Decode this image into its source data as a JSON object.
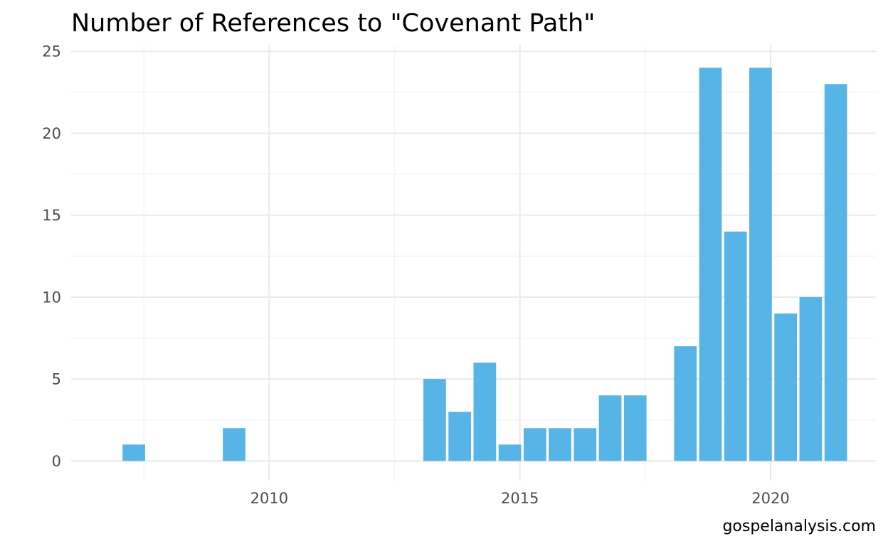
{
  "chart_data": {
    "type": "bar",
    "title": "Number of References to \"Covenant Path\"",
    "xlabel": "",
    "ylabel": "",
    "caption": "gospelanalysis.com",
    "x": [
      2007.3,
      2009.3,
      2013.3,
      2013.8,
      2014.3,
      2014.8,
      2015.3,
      2015.8,
      2016.3,
      2016.8,
      2017.3,
      2018.3,
      2018.8,
      2019.3,
      2019.8,
      2020.3,
      2020.8,
      2021.3
    ],
    "values": [
      1,
      2,
      5,
      3,
      6,
      1,
      2,
      2,
      2,
      4,
      4,
      7,
      24,
      14,
      24,
      9,
      10,
      23
    ],
    "xlim": [
      2006.05,
      2022.1
    ],
    "ylim": [
      -1.2,
      25.4
    ],
    "x_ticks": [
      2010,
      2015,
      2020
    ],
    "x_tick_labels": [
      "2010",
      "2015",
      "2020"
    ],
    "y_ticks": [
      0,
      5,
      10,
      15,
      20,
      25
    ],
    "y_tick_labels": [
      "0",
      "5",
      "10",
      "15",
      "20",
      "25"
    ],
    "grid": true,
    "legend": "none",
    "colors": {
      "bar": "#56b4e6",
      "grid_major": "#ebebeb",
      "grid_minor": "#f3f3f3",
      "tick_text": "#4d4d4d"
    }
  }
}
